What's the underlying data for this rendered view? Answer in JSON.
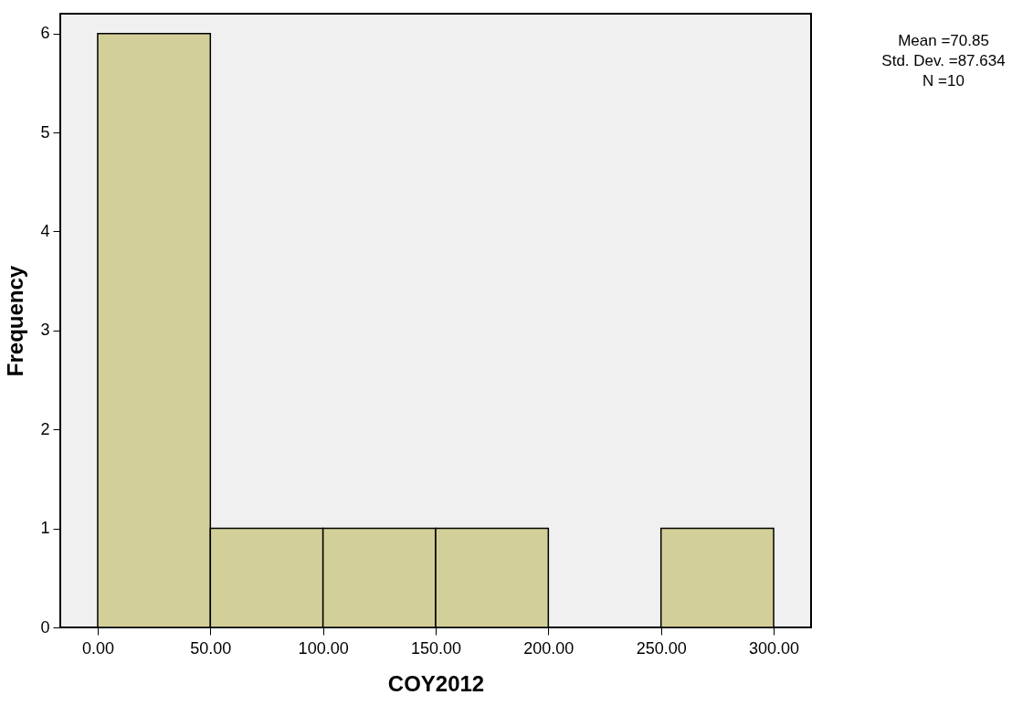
{
  "chart_data": {
    "type": "histogram",
    "xlabel": "COY2012",
    "ylabel": "Frequency",
    "bins": [
      0,
      50,
      100,
      150,
      200,
      250,
      300
    ],
    "values": [
      6,
      1,
      1,
      1,
      0,
      1
    ],
    "color": "#d3cf99",
    "xlim": [
      -16.6,
      316.6
    ],
    "xticks": [
      {
        "value": 0,
        "label": "0.00"
      },
      {
        "value": 50,
        "label": "50.00"
      },
      {
        "value": 100,
        "label": "100.00"
      },
      {
        "value": 150,
        "label": "150.00"
      },
      {
        "value": 200,
        "label": "200.00"
      },
      {
        "value": 250,
        "label": "250.00"
      },
      {
        "value": 300,
        "label": "300.00"
      }
    ],
    "ylim": [
      0,
      6.2
    ],
    "yticks": [
      0,
      1,
      2,
      3,
      4,
      5,
      6
    ],
    "grid": false,
    "annotations": [
      "Mean =70.85",
      "Std. Dev. =87.634",
      "N =10"
    ]
  }
}
